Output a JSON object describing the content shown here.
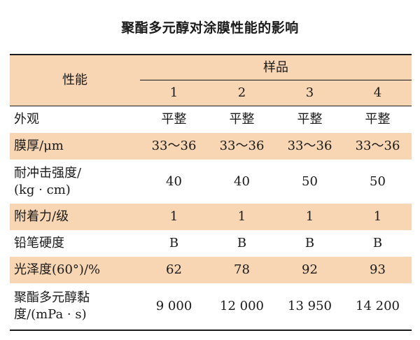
{
  "title": "聚酯多元醇对涂膜性能的影响",
  "table": {
    "property_header": "性能",
    "sample_header": "样品",
    "sample_ids": [
      "1",
      "2",
      "3",
      "4"
    ],
    "rows": [
      {
        "property": "外观",
        "values": [
          "平整",
          "平整",
          "平整",
          "平整"
        ]
      },
      {
        "property": "膜厚/μm",
        "values": [
          "33～36",
          "33～36",
          "33～36",
          "33～36"
        ]
      },
      {
        "property_line1": "耐冲击强度/",
        "property_line2": "(kg · cm)",
        "values": [
          "40",
          "40",
          "50",
          "50"
        ]
      },
      {
        "property": "附着力/级",
        "values": [
          "1",
          "1",
          "1",
          "1"
        ]
      },
      {
        "property": "铅笔硬度",
        "values": [
          "B",
          "B",
          "B",
          "B"
        ]
      },
      {
        "property": "光泽度(60°)/%",
        "values": [
          "62",
          "78",
          "92",
          "93"
        ]
      },
      {
        "property_line1": "聚酯多元醇黏",
        "property_line2": "度/(mPa · s)",
        "values": [
          "9 000",
          "12 000",
          "13 950",
          "14 200"
        ]
      }
    ]
  },
  "colors": {
    "shade": "#f8d6b3",
    "rule": "#1a1a1a"
  }
}
